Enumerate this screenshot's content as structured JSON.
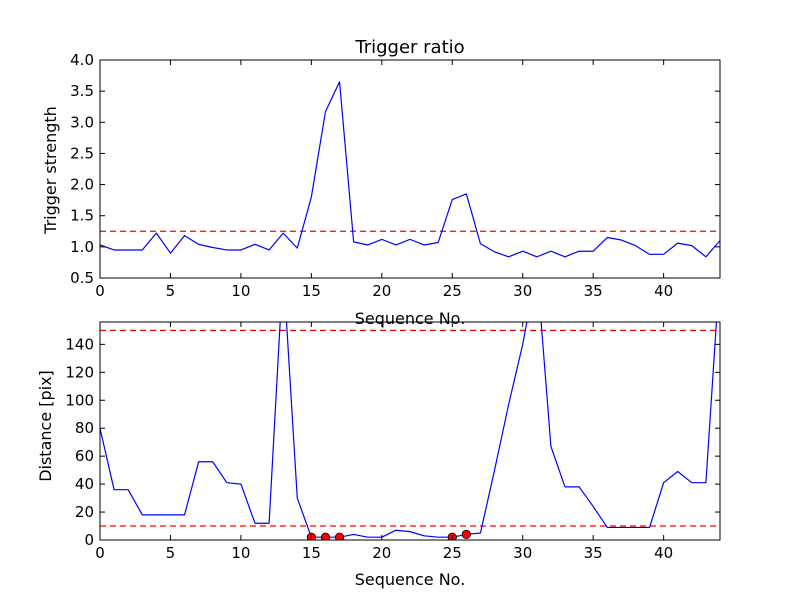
{
  "chart_data": [
    {
      "type": "line",
      "title": "Trigger ratio",
      "xlabel": "Sequence No.",
      "ylabel": "Trigger strength",
      "xlim": [
        0,
        44
      ],
      "ylim": [
        0.5,
        4.0
      ],
      "x_ticks": [
        0,
        5,
        10,
        15,
        20,
        25,
        30,
        35,
        40
      ],
      "y_ticks": [
        "0.5",
        "1.0",
        "1.5",
        "2.0",
        "2.5",
        "3.0",
        "3.5",
        "4.0"
      ],
      "series_color": "#0000ff",
      "threshold_color": "#ff0000",
      "x": [
        0,
        1,
        2,
        3,
        4,
        5,
        6,
        7,
        8,
        9,
        10,
        11,
        12,
        13,
        14,
        15,
        16,
        17,
        18,
        19,
        20,
        21,
        22,
        23,
        24,
        25,
        26,
        27,
        28,
        29,
        30,
        31,
        32,
        33,
        34,
        35,
        36,
        37,
        38,
        39,
        40,
        41,
        42,
        43,
        44
      ],
      "y": [
        1.03,
        0.95,
        0.95,
        0.95,
        1.22,
        0.9,
        1.18,
        1.04,
        0.99,
        0.95,
        0.95,
        1.04,
        0.95,
        1.22,
        0.98,
        1.8,
        3.17,
        3.65,
        1.08,
        1.03,
        1.12,
        1.03,
        1.12,
        1.03,
        1.07,
        1.76,
        1.85,
        1.05,
        0.92,
        0.84,
        0.93,
        0.84,
        0.93,
        0.84,
        0.93,
        0.93,
        1.15,
        1.11,
        1.02,
        0.88,
        0.88,
        1.06,
        1.02,
        0.84,
        1.1
      ],
      "threshold": 1.25,
      "grid": false,
      "legend": "none"
    },
    {
      "type": "line",
      "title": "",
      "xlabel": "Sequence No.",
      "ylabel": "Distance [pix]",
      "xlim": [
        0,
        44
      ],
      "ylim": [
        0,
        156
      ],
      "x_ticks": [
        0,
        5,
        10,
        15,
        20,
        25,
        30,
        35,
        40
      ],
      "y_ticks": [
        0,
        20,
        40,
        60,
        80,
        100,
        120,
        140
      ],
      "series_color": "#0000ff",
      "threshold_color": "#ff0000",
      "marker_color": "#ff0000",
      "x": [
        0,
        1,
        2,
        3,
        4,
        5,
        6,
        7,
        8,
        9,
        10,
        11,
        12,
        13,
        14,
        15,
        16,
        17,
        18,
        19,
        20,
        21,
        22,
        23,
        24,
        25,
        26,
        27,
        28,
        29,
        30,
        31,
        32,
        33,
        34,
        35,
        36,
        37,
        38,
        39,
        40,
        41,
        42,
        43,
        44
      ],
      "y": [
        80,
        36,
        36,
        18,
        18,
        18,
        18,
        56,
        56,
        41,
        40,
        12,
        12,
        195,
        30,
        2,
        2,
        2,
        4,
        2,
        2,
        7,
        6,
        3,
        2,
        2,
        4,
        5,
        50,
        97,
        140,
        195,
        67,
        38,
        38,
        24,
        9,
        9,
        9,
        9,
        41,
        49,
        41,
        41,
        195
      ],
      "thresholds": [
        150,
        10
      ],
      "highlight_points": [
        {
          "x": 15,
          "y": 2
        },
        {
          "x": 16,
          "y": 2
        },
        {
          "x": 17,
          "y": 2
        },
        {
          "x": 25,
          "y": 2
        },
        {
          "x": 26,
          "y": 4
        }
      ],
      "grid": false,
      "legend": "none"
    }
  ]
}
